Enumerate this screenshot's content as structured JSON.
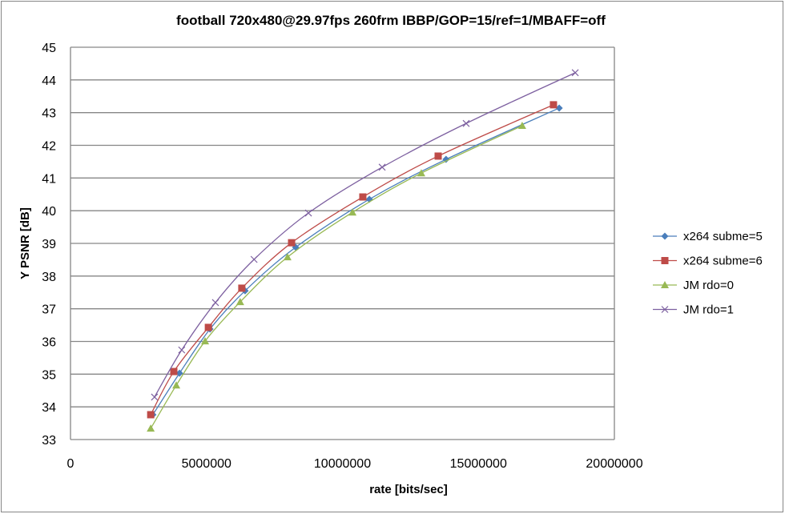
{
  "chart_data": {
    "type": "line",
    "title": "football 720x480@29.97fps  260frm IBBP/GOP=15/ref=1/MBAFF=off",
    "xlabel": "rate [bits/sec]",
    "ylabel": "Y PSNR [dB]",
    "xlim": [
      0,
      20000000
    ],
    "ylim": [
      33,
      45
    ],
    "xticks": [
      "0",
      "5000000",
      "10000000",
      "15000000",
      "20000000"
    ],
    "yticks": [
      "33",
      "34",
      "35",
      "36",
      "37",
      "38",
      "39",
      "40",
      "41",
      "42",
      "43",
      "44",
      "45"
    ],
    "grid": "horizontal",
    "legend_position": "right",
    "series": [
      {
        "name": "x264 subme=5",
        "color": "#4a7ebb",
        "marker": "diamond",
        "x": [
          3030000,
          4010000,
          5130000,
          6420000,
          8280000,
          10990000,
          13810000,
          17970000
        ],
        "y": [
          33.76,
          35.03,
          36.38,
          37.55,
          38.88,
          40.35,
          41.57,
          43.14
        ]
      },
      {
        "name": "x264 subme=6",
        "color": "#be4b48",
        "marker": "square",
        "x": [
          2950000,
          3800000,
          5070000,
          6300000,
          8130000,
          10750000,
          13520000,
          17760000
        ],
        "y": [
          33.76,
          35.08,
          36.43,
          37.63,
          39.02,
          40.42,
          41.67,
          43.24
        ]
      },
      {
        "name": "JM rdo=0",
        "color": "#98b954",
        "marker": "triangle",
        "x": [
          2950000,
          3890000,
          4950000,
          6240000,
          7980000,
          10370000,
          12900000,
          16610000
        ],
        "y": [
          33.34,
          34.66,
          36.01,
          37.21,
          38.58,
          39.95,
          41.15,
          42.6
        ]
      },
      {
        "name": "JM rdo=1",
        "color": "#7d60a0",
        "marker": "x",
        "x": [
          3090000,
          4090000,
          5330000,
          6750000,
          8750000,
          11460000,
          14550000,
          18560000
        ],
        "y": [
          34.3,
          35.74,
          37.19,
          38.51,
          39.93,
          41.33,
          42.67,
          44.22
        ]
      }
    ]
  }
}
